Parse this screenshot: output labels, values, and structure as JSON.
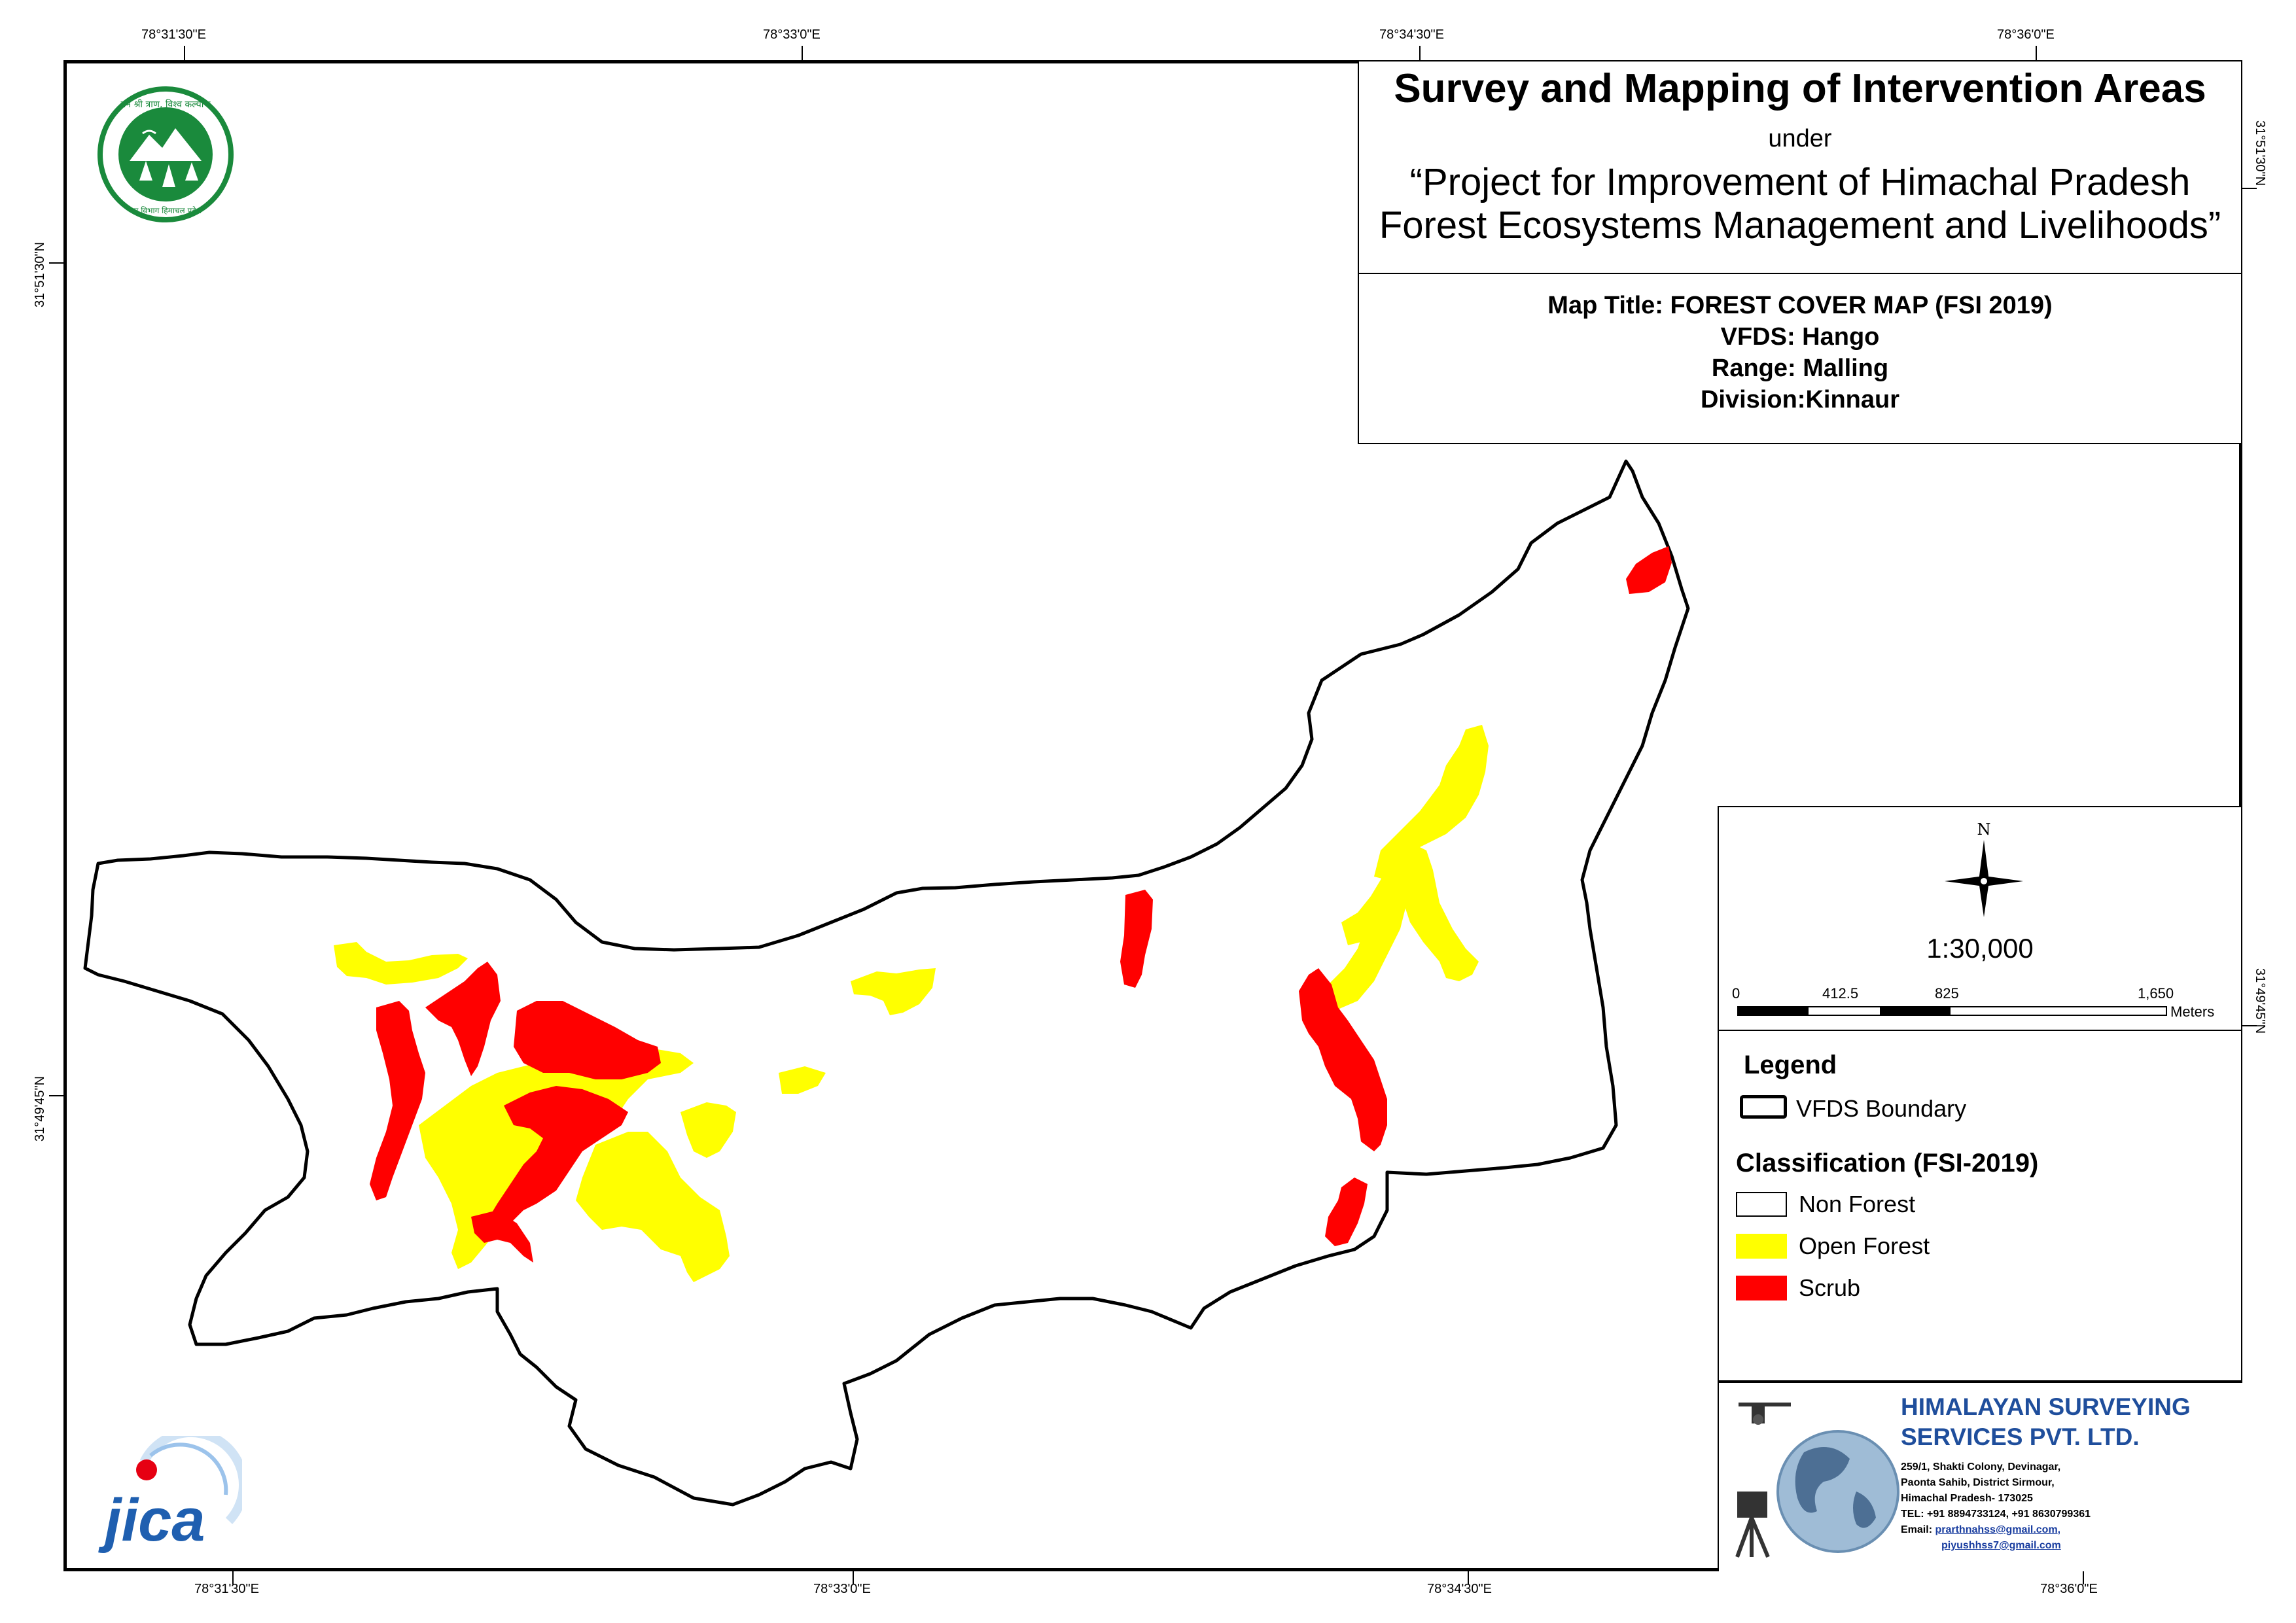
{
  "graticule": {
    "top": [
      "78°31'30\"E",
      "78°33'0\"E",
      "78°34'30\"E",
      "78°36'0\"E"
    ],
    "bottom": [
      "78°31'30\"E",
      "78°33'0\"E",
      "78°34'30\"E",
      "78°36'0\"E"
    ],
    "left": [
      "31°51'30\"N",
      "31°49'45\"N"
    ],
    "right": [
      "31°51'30\"N",
      "31°49'45\"N"
    ]
  },
  "header": {
    "title": "Survey and Mapping of Intervention Areas",
    "under": "under",
    "project_line1": "“Project for Improvement of Himachal Pradesh",
    "project_line2": "Forest Ecosystems Management and Livelihoods”"
  },
  "map_info": {
    "map_title": "Map Title: FOREST COVER MAP (FSI 2019)",
    "vfds": "VFDS: Hango",
    "range": "Range: Malling",
    "division": "Division:Kinnaur"
  },
  "north_arrow": {
    "label": "N"
  },
  "scale": {
    "ratio": "1:30,000",
    "ticks": [
      "0",
      "412.5",
      "825",
      "1,650"
    ],
    "unit": "Meters"
  },
  "legend": {
    "title": "Legend",
    "boundary_label": "VFDS Boundary",
    "classification_title": "Classification (FSI-2019)",
    "classes": [
      {
        "label": "Non Forest",
        "color": "#ffffff"
      },
      {
        "label": "Open Forest",
        "color": "#ffff00"
      },
      {
        "label": "Scrub",
        "color": "#ff0000"
      }
    ]
  },
  "logos": {
    "forest_dept_text": "वन श्री त्राण, विश्व कल्याण",
    "forest_dept_bottom": "वन विभाग हिमाचल प्रदेश",
    "jica": "JICA"
  },
  "company": {
    "name_line1": "HIMALAYAN SURVEYING",
    "name_line2": "SERVICES PVT. LTD.",
    "address1": "259/1, Shakti Colony, Devinagar,",
    "address2": "Paonta Sahib, District Sirmour,",
    "address3": "Himachal Pradesh- 173025",
    "tel": "TEL: +91 8894733124, +91 8630799361",
    "email_label": "Email:",
    "email1": "prarthnahss@gmail.com,",
    "email2": "piyushhss7@gmail.com"
  },
  "colors": {
    "open_forest": "#ffff00",
    "scrub": "#ff0000",
    "logo_green": "#1a8a3c",
    "company_blue": "#1f4e9c"
  }
}
